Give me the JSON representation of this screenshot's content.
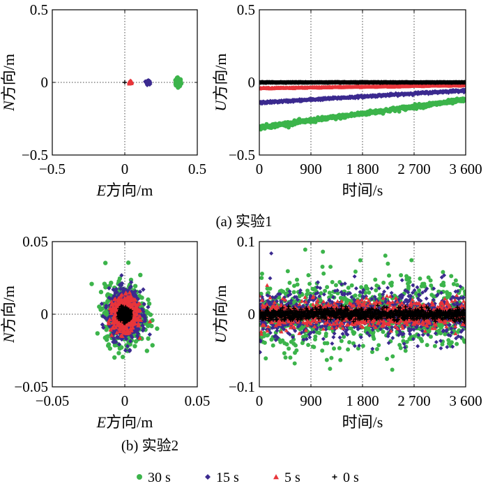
{
  "chart_data": [
    {
      "id": "a_left",
      "type": "scatter",
      "xlabel_italic": "E",
      "xlabel_rest": "方向/m",
      "ylabel_italic": "N",
      "ylabel_rest": "方向/m",
      "xlim": [
        -0.5,
        0.5
      ],
      "ylim": [
        -0.5,
        0.5
      ],
      "x_ticks": [
        -0.5,
        0,
        0.5
      ],
      "x_tick_labels": [
        "−0.5",
        "0",
        "0.5"
      ],
      "y_ticks": [
        -0.5,
        0,
        0.5
      ],
      "y_tick_labels": [
        "−0.5",
        "0",
        "0.5"
      ],
      "series": [
        {
          "name": "30 s",
          "center": [
            0.37,
            0.0
          ],
          "spread_x": 0.02,
          "spread_y": 0.03
        },
        {
          "name": "15 s",
          "center": [
            0.16,
            0.0
          ],
          "spread_x": 0.012,
          "spread_y": 0.012
        },
        {
          "name": "5 s",
          "center": [
            0.04,
            0.0
          ],
          "spread_x": 0.008,
          "spread_y": 0.008
        },
        {
          "name": "0 s",
          "center": [
            0.0,
            0.0
          ],
          "spread_x": 0.0,
          "spread_y": 0.0
        }
      ]
    },
    {
      "id": "a_right",
      "type": "line",
      "xlabel": "时间/s",
      "ylabel_italic": "U",
      "ylabel_rest": "方向/m",
      "xlim": [
        0,
        3600
      ],
      "ylim": [
        -0.5,
        0.5
      ],
      "x_ticks": [
        0,
        900,
        1800,
        2700,
        3600
      ],
      "x_tick_labels": [
        "0",
        "900",
        "1 800",
        "2 700",
        "3 600"
      ],
      "y_ticks": [
        -0.5,
        0,
        0.5
      ],
      "y_tick_labels": [
        "−0.5",
        "0",
        "0.5"
      ],
      "series": [
        {
          "name": "30 s",
          "start": -0.31,
          "end": -0.12,
          "noise": 0.015
        },
        {
          "name": "15 s",
          "start": -0.14,
          "end": -0.055,
          "noise": 0.008
        },
        {
          "name": "5 s",
          "start": -0.04,
          "end": -0.02,
          "noise": 0.004
        },
        {
          "name": "0 s",
          "start": 0.0,
          "end": 0.0,
          "noise": 0.002
        }
      ]
    },
    {
      "id": "b_left",
      "type": "scatter",
      "xlabel_italic": "E",
      "xlabel_rest": "方向/m",
      "ylabel_italic": "N",
      "ylabel_rest": "方向/m",
      "xlim": [
        -0.05,
        0.05
      ],
      "ylim": [
        -0.05,
        0.05
      ],
      "x_ticks": [
        -0.05,
        0,
        0.05
      ],
      "x_tick_labels": [
        "−0.05",
        "0",
        "0.05"
      ],
      "y_ticks": [
        -0.05,
        0,
        0.05
      ],
      "y_tick_labels": [
        "−0.05",
        "0",
        "0.05"
      ],
      "series": [
        {
          "name": "30 s",
          "center": [
            0.0,
            0.0
          ],
          "spread_x": 0.015,
          "spread_y": 0.022
        },
        {
          "name": "15 s",
          "center": [
            0.0,
            0.0
          ],
          "spread_x": 0.012,
          "spread_y": 0.018
        },
        {
          "name": "5 s",
          "center": [
            0.0,
            0.0
          ],
          "spread_x": 0.009,
          "spread_y": 0.012
        },
        {
          "name": "0 s",
          "center": [
            0.0,
            0.0
          ],
          "spread_x": 0.004,
          "spread_y": 0.004
        }
      ]
    },
    {
      "id": "b_right",
      "type": "line",
      "xlabel": "时间/s",
      "ylabel_italic": "U",
      "ylabel_rest": "方向/m",
      "xlim": [
        0,
        3600
      ],
      "ylim": [
        -0.1,
        0.1
      ],
      "x_ticks": [
        0,
        900,
        1800,
        2700,
        3600
      ],
      "x_tick_labels": [
        "0",
        "900",
        "1 800",
        "2 700",
        "3 600"
      ],
      "y_ticks": [
        -0.1,
        0,
        0.1
      ],
      "y_tick_labels": [
        "−0.1",
        "0",
        "0.1"
      ],
      "series": [
        {
          "name": "30 s",
          "start": 0.0,
          "end": 0.0,
          "noise": 0.05
        },
        {
          "name": "15 s",
          "start": 0.0,
          "end": 0.0,
          "noise": 0.035
        },
        {
          "name": "5 s",
          "start": 0.0,
          "end": 0.0,
          "noise": 0.02
        },
        {
          "name": "0 s",
          "start": 0.0,
          "end": 0.0,
          "noise": 0.008
        }
      ]
    }
  ],
  "captions": {
    "a": "(a) 实验1",
    "b": "(b) 实验2"
  },
  "legend": [
    {
      "label": "30 s",
      "marker": "circle",
      "color": "#3cb44b"
    },
    {
      "label": "15 s",
      "marker": "diamond",
      "color": "#3b2a8f"
    },
    {
      "label": "5 s",
      "marker": "triangle",
      "color": "#e8353a"
    },
    {
      "label": "0 s",
      "marker": "plus",
      "color": "#000000"
    }
  ]
}
